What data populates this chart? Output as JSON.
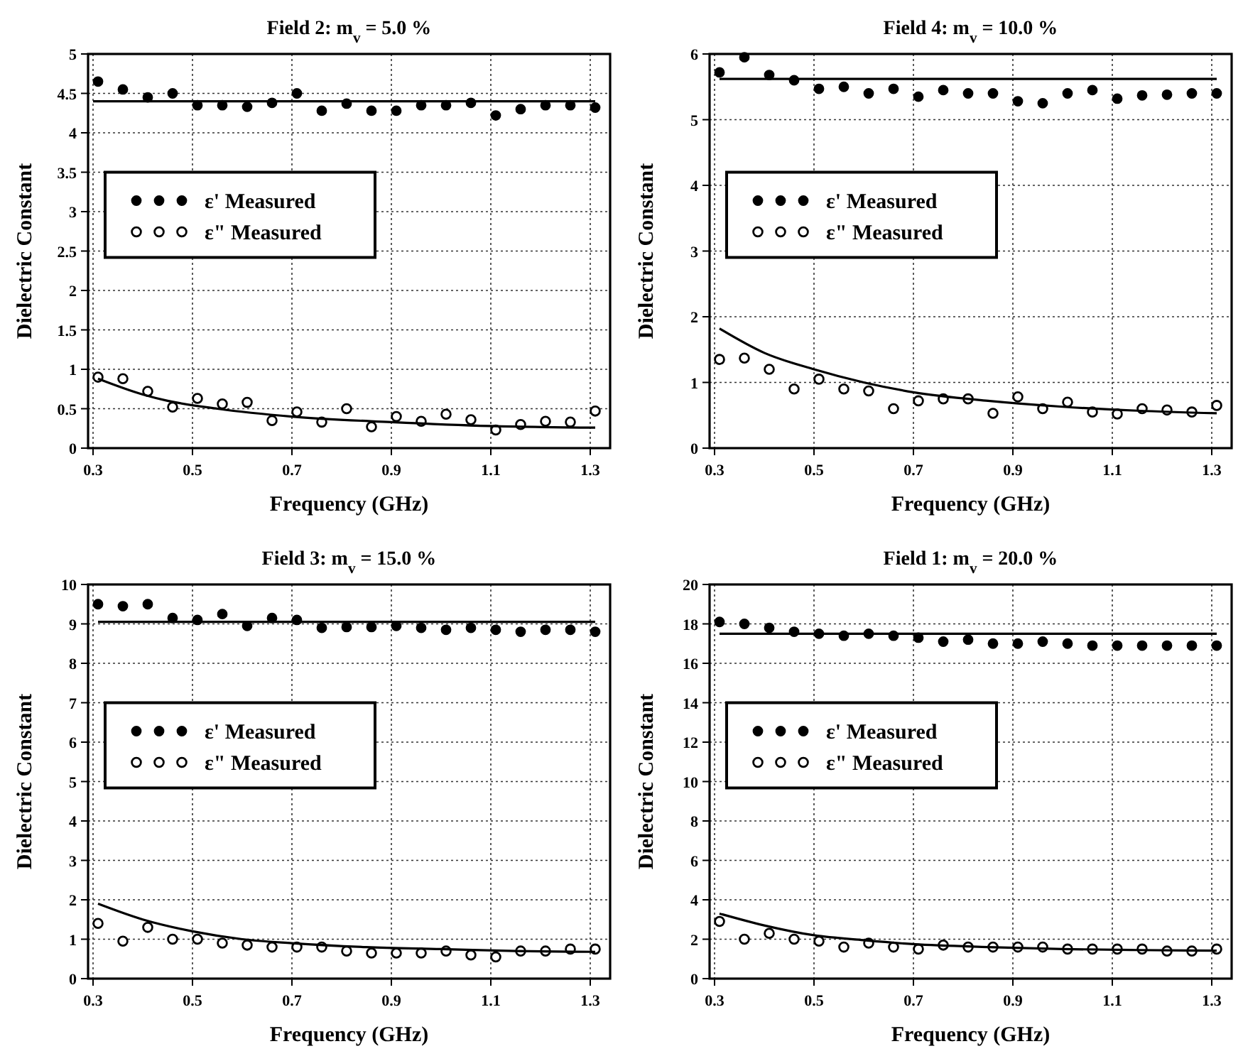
{
  "chart_data": [
    {
      "type": "scatter",
      "title": "Field 2: m$_{v}$ = 5.0 %",
      "xlabel": "Frequency (GHz)",
      "ylabel": "Dielectric Constant",
      "xlim": [
        0.29,
        1.34
      ],
      "xticks": [
        0.3,
        0.5,
        0.7,
        0.9,
        1.1,
        1.3
      ],
      "ylim": [
        0,
        5
      ],
      "yticks": [
        0,
        0.5,
        1,
        1.5,
        2,
        2.5,
        3,
        3.5,
        4,
        4.5,
        5
      ],
      "grid": true,
      "legend": "left",
      "x": [
        0.31,
        0.36,
        0.41,
        0.46,
        0.51,
        0.56,
        0.61,
        0.66,
        0.71,
        0.76,
        0.81,
        0.86,
        0.91,
        0.96,
        1.01,
        1.06,
        1.11,
        1.16,
        1.21,
        1.26,
        1.31
      ],
      "series": [
        {
          "name": "ε' Measured",
          "type": "scatter",
          "marker": "circle",
          "color": "#000000",
          "values": [
            4.65,
            4.55,
            4.45,
            4.5,
            4.35,
            4.35,
            4.33,
            4.38,
            4.5,
            4.28,
            4.37,
            4.28,
            4.28,
            4.35,
            4.35,
            4.38,
            4.22,
            4.3,
            4.35,
            4.35,
            4.32
          ]
        },
        {
          "name": "ε\" Measured",
          "type": "scatter",
          "marker": "circle_open",
          "color": "#000000",
          "values": [
            0.9,
            0.88,
            0.72,
            0.52,
            0.63,
            0.56,
            0.58,
            0.35,
            0.46,
            0.33,
            0.5,
            0.27,
            0.4,
            0.34,
            0.43,
            0.36,
            0.23,
            0.3,
            0.34,
            0.33,
            0.47
          ]
        },
        {
          "type": "line",
          "marker": "none",
          "color": "#000000",
          "x": [
            0.3,
            1.31
          ],
          "values": [
            4.4,
            4.4
          ]
        },
        {
          "type": "line",
          "marker": "none",
          "color": "#000000",
          "x": [
            0.31,
            0.4,
            0.45,
            0.55,
            0.7,
            0.9,
            1.1,
            1.31
          ],
          "values": [
            0.88,
            0.68,
            0.6,
            0.5,
            0.4,
            0.33,
            0.28,
            0.26
          ]
        }
      ]
    },
    {
      "type": "scatter",
      "title": "Field 4: m$_{v}$ = 10.0 %",
      "xlabel": "Frequency (GHz)",
      "ylabel": "Dielectric Constant",
      "xlim": [
        0.29,
        1.34
      ],
      "xticks": [
        0.3,
        0.5,
        0.7,
        0.9,
        1.1,
        1.3
      ],
      "ylim": [
        0,
        6
      ],
      "yticks": [
        0,
        1,
        2,
        3,
        4,
        5,
        6
      ],
      "grid": true,
      "legend": "left",
      "x": [
        0.31,
        0.36,
        0.41,
        0.46,
        0.51,
        0.56,
        0.61,
        0.66,
        0.71,
        0.76,
        0.81,
        0.86,
        0.91,
        0.96,
        1.01,
        1.06,
        1.11,
        1.16,
        1.21,
        1.26,
        1.31
      ],
      "series": [
        {
          "name": "ε' Measured",
          "type": "scatter",
          "marker": "circle",
          "color": "#000000",
          "values": [
            5.72,
            5.95,
            5.68,
            5.6,
            5.47,
            5.5,
            5.4,
            5.47,
            5.35,
            5.45,
            5.4,
            5.4,
            5.28,
            5.25,
            5.4,
            5.45,
            5.32,
            5.37,
            5.38,
            5.4,
            5.4
          ]
        },
        {
          "name": "ε\" Measured",
          "type": "scatter",
          "marker": "circle_open",
          "color": "#000000",
          "values": [
            1.35,
            1.37,
            1.2,
            0.9,
            1.05,
            0.9,
            0.87,
            0.6,
            0.72,
            0.75,
            0.75,
            0.53,
            0.78,
            0.6,
            0.7,
            0.55,
            0.52,
            0.6,
            0.58,
            0.55,
            0.65
          ]
        },
        {
          "type": "line",
          "marker": "none",
          "color": "#000000",
          "x": [
            0.31,
            1.31
          ],
          "values": [
            5.62,
            5.62
          ]
        },
        {
          "type": "line",
          "marker": "none",
          "color": "#000000",
          "x": [
            0.31,
            0.4,
            0.5,
            0.6,
            0.7,
            0.85,
            1.0,
            1.15,
            1.31
          ],
          "values": [
            1.82,
            1.45,
            1.2,
            1.0,
            0.85,
            0.72,
            0.63,
            0.57,
            0.53
          ]
        }
      ]
    },
    {
      "type": "scatter",
      "title": "Field 3: m$_{v}$ = 15.0 %",
      "xlabel": "Frequency (GHz)",
      "ylabel": "Dielectric Constant",
      "xlim": [
        0.29,
        1.34
      ],
      "xticks": [
        0.3,
        0.5,
        0.7,
        0.9,
        1.1,
        1.3
      ],
      "ylim": [
        0,
        10
      ],
      "yticks": [
        0,
        1,
        2,
        3,
        4,
        5,
        6,
        7,
        8,
        9,
        10
      ],
      "grid": true,
      "legend": "left",
      "x": [
        0.31,
        0.36,
        0.41,
        0.46,
        0.51,
        0.56,
        0.61,
        0.66,
        0.71,
        0.76,
        0.81,
        0.86,
        0.91,
        0.96,
        1.01,
        1.06,
        1.11,
        1.16,
        1.21,
        1.26,
        1.31
      ],
      "series": [
        {
          "name": "ε' Measured",
          "type": "scatter",
          "marker": "circle",
          "color": "#000000",
          "values": [
            9.5,
            9.45,
            9.5,
            9.15,
            9.1,
            9.25,
            8.95,
            9.15,
            9.1,
            8.9,
            8.92,
            8.92,
            8.95,
            8.9,
            8.85,
            8.9,
            8.85,
            8.8,
            8.85,
            8.85,
            8.8
          ]
        },
        {
          "name": "ε\" Measured",
          "type": "scatter",
          "marker": "circle_open",
          "color": "#000000",
          "values": [
            1.4,
            0.95,
            1.3,
            1.0,
            1.0,
            0.9,
            0.85,
            0.8,
            0.8,
            0.8,
            0.7,
            0.65,
            0.65,
            0.65,
            0.7,
            0.6,
            0.55,
            0.7,
            0.7,
            0.75,
            0.75
          ]
        },
        {
          "type": "line",
          "marker": "none",
          "color": "#000000",
          "x": [
            0.31,
            1.31
          ],
          "values": [
            9.05,
            9.05
          ]
        },
        {
          "type": "line",
          "marker": "none",
          "color": "#000000",
          "x": [
            0.31,
            0.4,
            0.5,
            0.6,
            0.7,
            0.85,
            1.0,
            1.15,
            1.31
          ],
          "values": [
            1.9,
            1.5,
            1.2,
            1.0,
            0.9,
            0.8,
            0.75,
            0.7,
            0.68
          ]
        }
      ]
    },
    {
      "type": "scatter",
      "title": "Field 1: m$_{v}$ = 20.0 %",
      "xlabel": "Frequency (GHz)",
      "ylabel": "Dielectric Constant",
      "xlim": [
        0.29,
        1.34
      ],
      "xticks": [
        0.3,
        0.5,
        0.7,
        0.9,
        1.1,
        1.3
      ],
      "ylim": [
        0,
        20
      ],
      "yticks": [
        0,
        2,
        4,
        6,
        8,
        10,
        12,
        14,
        16,
        18,
        20
      ],
      "grid": true,
      "legend": "left",
      "x": [
        0.31,
        0.36,
        0.41,
        0.46,
        0.51,
        0.56,
        0.61,
        0.66,
        0.71,
        0.76,
        0.81,
        0.86,
        0.91,
        0.96,
        1.01,
        1.06,
        1.11,
        1.16,
        1.21,
        1.26,
        1.31
      ],
      "series": [
        {
          "name": "ε' Measured",
          "type": "scatter",
          "marker": "circle",
          "color": "#000000",
          "values": [
            18.1,
            18.0,
            17.8,
            17.6,
            17.5,
            17.4,
            17.5,
            17.4,
            17.3,
            17.1,
            17.2,
            17.0,
            17.0,
            17.1,
            17.0,
            16.9,
            16.9,
            16.9,
            16.9,
            16.9,
            16.9
          ]
        },
        {
          "name": "ε\" Measured",
          "type": "scatter",
          "marker": "circle_open",
          "color": "#000000",
          "values": [
            2.9,
            2.0,
            2.3,
            2.0,
            1.9,
            1.6,
            1.8,
            1.6,
            1.5,
            1.7,
            1.6,
            1.6,
            1.6,
            1.6,
            1.5,
            1.5,
            1.5,
            1.5,
            1.4,
            1.4,
            1.5
          ]
        },
        {
          "type": "line",
          "marker": "none",
          "color": "#000000",
          "x": [
            0.31,
            1.31
          ],
          "values": [
            17.5,
            17.5
          ]
        },
        {
          "type": "line",
          "marker": "none",
          "color": "#000000",
          "x": [
            0.31,
            0.4,
            0.5,
            0.6,
            0.7,
            0.85,
            1.0,
            1.15,
            1.31
          ],
          "values": [
            3.3,
            2.7,
            2.2,
            1.95,
            1.75,
            1.6,
            1.5,
            1.45,
            1.42
          ]
        }
      ]
    }
  ]
}
